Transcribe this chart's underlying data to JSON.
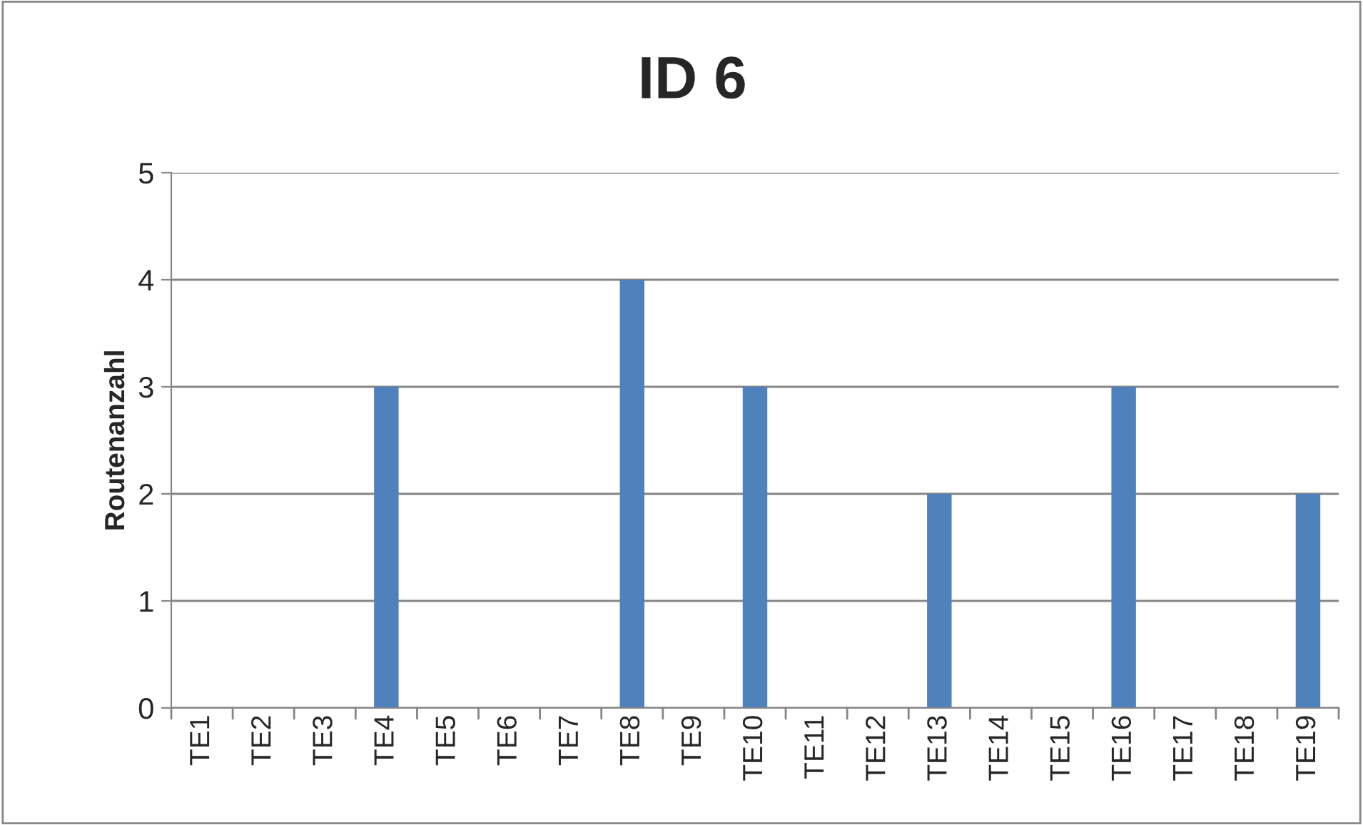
{
  "chart_data": {
    "type": "bar",
    "title": "ID 6",
    "ylabel": "Routenanzahl",
    "categories": [
      "TE1",
      "TE2",
      "TE3",
      "TE4",
      "TE5",
      "TE6",
      "TE7",
      "TE8",
      "TE9",
      "TE10",
      "TE11",
      "TE12",
      "TE13",
      "TE14",
      "TE15",
      "TE16",
      "TE17",
      "TE18",
      "TE19"
    ],
    "values": [
      0,
      0,
      0,
      3,
      0,
      0,
      0,
      4,
      0,
      3,
      0,
      0,
      2,
      0,
      0,
      3,
      0,
      0,
      2
    ],
    "color": "#4f81bd",
    "ylim": [
      0,
      5
    ],
    "yticks": [
      0,
      1,
      2,
      3,
      4,
      5
    ],
    "grid": "y",
    "legend": false
  }
}
